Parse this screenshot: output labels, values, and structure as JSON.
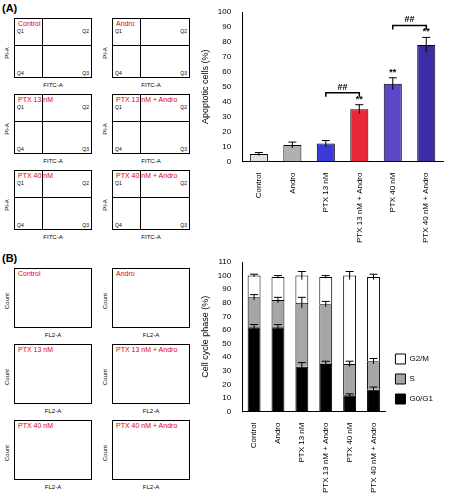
{
  "chart_data": [
    {
      "panel": "(A)",
      "type": "bar",
      "y_label": "Apoptotic cells (%)",
      "categories": [
        "Control",
        "Andro",
        "PTX 13 nM",
        "PTX 13 nM + Andro",
        "PTX 40 nM",
        "PTX 40 nM + Andro"
      ],
      "values": [
        5,
        11,
        12,
        35,
        52,
        78
      ],
      "errors": [
        1,
        2,
        2,
        3,
        4,
        5
      ],
      "colors": [
        "#e0e0e0",
        "#b0b0b0",
        "#3a3ad8",
        "#e8283a",
        "#5a48c8",
        "#3a2ea8"
      ],
      "ylim": [
        0,
        100
      ],
      "yticks": [
        0,
        10,
        20,
        30,
        40,
        50,
        60,
        70,
        80,
        90,
        100
      ],
      "annotations": [
        {
          "category": "PTX 13 nM + Andro",
          "text": "**"
        },
        {
          "category": "PTX 40 nM",
          "text": "**"
        },
        {
          "category": "PTX 40 nM + Andro",
          "text": "**"
        }
      ],
      "brackets": [
        {
          "from": "PTX 13 nM",
          "to": "PTX 13 nM + Andro",
          "text": "##"
        },
        {
          "from": "PTX 40 nM",
          "to": "PTX 40 nM + Andro",
          "text": "##"
        }
      ],
      "cytometry": {
        "x_label": "FITC-A",
        "y_label": "PI-A",
        "quadrants": [
          "Q1",
          "Q2",
          "Q3",
          "Q4"
        ],
        "samples": [
          "Control",
          "Andro",
          "PTX 13 nM",
          "PTX 13 nM + Andro",
          "PTX 40 nM",
          "PTX 40 nM + Andro"
        ]
      }
    },
    {
      "panel": "(B)",
      "type": "bar",
      "stacked": true,
      "y_label": "Cell cycle phase (%)",
      "legend": "right",
      "categories": [
        "Control",
        "Andro",
        "PTX 13 nM",
        "PTX 13 nM + Andro",
        "PTX 40 nM",
        "PTX 40 nM + Andro"
      ],
      "series": [
        {
          "name": "G0/G1",
          "color": "#000000",
          "values": [
            62,
            62,
            33,
            35,
            12,
            16
          ],
          "errors": [
            2,
            2,
            3,
            2,
            1,
            2
          ]
        },
        {
          "name": "S",
          "color": "#a6a6a6",
          "values": [
            22,
            20,
            47,
            44,
            23,
            21
          ],
          "errors": [
            2,
            2,
            4,
            2,
            2,
            2
          ]
        },
        {
          "name": "G2/M",
          "color": "#ffffff",
          "values": [
            16,
            17,
            20,
            20,
            65,
            62
          ],
          "errors": [
            1,
            1,
            3,
            1,
            3,
            2
          ]
        }
      ],
      "ylim": [
        0,
        110
      ],
      "yticks": [
        0,
        10,
        20,
        30,
        40,
        50,
        60,
        70,
        80,
        90,
        100,
        110
      ],
      "cytometry": {
        "x_label": "FL2-A",
        "y_label": "Count",
        "samples": [
          "Control",
          "Andro",
          "PTX 13 nM",
          "PTX 13 nM + Andro",
          "PTX 40 nM",
          "PTX 40 nM + Andro"
        ]
      }
    }
  ]
}
